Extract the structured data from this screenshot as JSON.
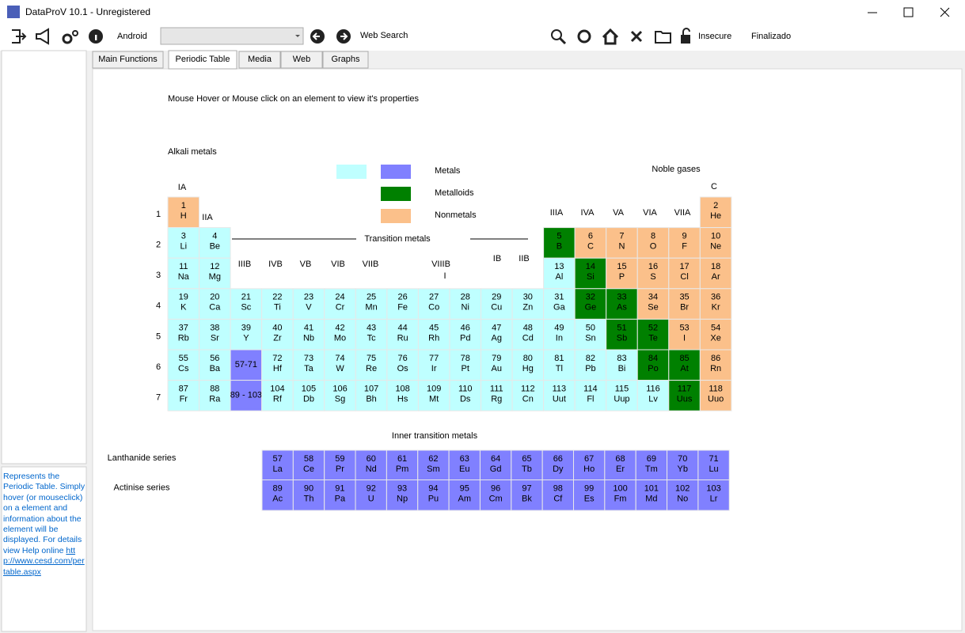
{
  "window": {
    "title": "DataProV 10.1 - Unregistered"
  },
  "toolbar": {
    "device": "Android",
    "web_search": "Web Search",
    "security": "Insecure",
    "status": "Finalizado"
  },
  "tabs": [
    {
      "label": "Main Functions"
    },
    {
      "label": "Periodic Table",
      "active": true
    },
    {
      "label": "Media"
    },
    {
      "label": "Web"
    },
    {
      "label": "Graphs"
    }
  ],
  "sidebar": {
    "description": "Represents the Periodic Table. Simply hover (or mouseclick) on a element and information about the element will be displayed. For details view Help online",
    "link": "http://www.cesd.com/pertable.aspx"
  },
  "periodic": {
    "instruction": "Mouse Hover or Mouse click on an element to view it's properties",
    "alkali": {
      "label": "Alkali metals",
      "color": "#bfffff"
    },
    "legend": [
      {
        "label": "Metals",
        "color": "#8080ff"
      },
      {
        "label": "Metalloids",
        "color": "#008000"
      },
      {
        "label": "Nonmetals",
        "color": "#fbc08a"
      }
    ],
    "noble_gases": "Noble gases",
    "transition_metals": "Transition metals",
    "group_labels": [
      "IA",
      "IIA",
      "IIIB",
      "IVB",
      "VB",
      "VIB",
      "VIIB",
      "VIIIB",
      "I",
      "IB",
      "IIB",
      "IIIA",
      "IVA",
      "VA",
      "VIA",
      "VIIA",
      "C"
    ],
    "periods": [
      {
        "label": "1",
        "cells": [
          {
            "n": "1",
            "s": "H",
            "color": "#fbc08a"
          },
          null,
          null,
          null,
          null,
          null,
          null,
          null,
          null,
          null,
          null,
          null,
          null,
          null,
          null,
          null,
          null,
          {
            "n": "2",
            "s": "He",
            "color": "#fbc08a"
          }
        ]
      },
      {
        "label": "2",
        "cells": [
          {
            "n": "3",
            "s": "Li",
            "color": "#bfffff"
          },
          {
            "n": "4",
            "s": "Be",
            "color": "#bfffff"
          },
          null,
          null,
          null,
          null,
          null,
          null,
          null,
          null,
          null,
          null,
          {
            "n": "5",
            "s": "B",
            "color": "#008000"
          },
          {
            "n": "6",
            "s": "C",
            "color": "#fbc08a"
          },
          {
            "n": "7",
            "s": "N",
            "color": "#fbc08a"
          },
          {
            "n": "8",
            "s": "O",
            "color": "#fbc08a"
          },
          {
            "n": "9",
            "s": "F",
            "color": "#fbc08a"
          },
          {
            "n": "10",
            "s": "Ne",
            "color": "#fbc08a"
          }
        ]
      },
      {
        "label": "3",
        "cells": [
          {
            "n": "11",
            "s": "Na",
            "color": "#bfffff"
          },
          {
            "n": "12",
            "s": "Mg",
            "color": "#bfffff"
          },
          null,
          null,
          null,
          null,
          null,
          null,
          null,
          null,
          null,
          null,
          {
            "n": "13",
            "s": "Al",
            "color": "#bfffff"
          },
          {
            "n": "14",
            "s": "Si",
            "color": "#008000"
          },
          {
            "n": "15",
            "s": "P",
            "color": "#fbc08a"
          },
          {
            "n": "16",
            "s": "S",
            "color": "#fbc08a"
          },
          {
            "n": "17",
            "s": "Cl",
            "color": "#fbc08a"
          },
          {
            "n": "18",
            "s": "Ar",
            "color": "#fbc08a"
          }
        ]
      },
      {
        "label": "4",
        "cells": [
          {
            "n": "19",
            "s": "K",
            "color": "#bfffff"
          },
          {
            "n": "20",
            "s": "Ca",
            "color": "#bfffff"
          },
          {
            "n": "21",
            "s": "Sc",
            "color": "#bfffff"
          },
          {
            "n": "22",
            "s": "Ti",
            "color": "#bfffff"
          },
          {
            "n": "23",
            "s": "V",
            "color": "#bfffff"
          },
          {
            "n": "24",
            "s": "Cr",
            "color": "#bfffff"
          },
          {
            "n": "25",
            "s": "Mn",
            "color": "#bfffff"
          },
          {
            "n": "26",
            "s": "Fe",
            "color": "#bfffff"
          },
          {
            "n": "27",
            "s": "Co",
            "color": "#bfffff"
          },
          {
            "n": "28",
            "s": "Ni",
            "color": "#bfffff"
          },
          {
            "n": "29",
            "s": "Cu",
            "color": "#bfffff"
          },
          {
            "n": "30",
            "s": "Zn",
            "color": "#bfffff"
          },
          {
            "n": "31",
            "s": "Ga",
            "color": "#bfffff"
          },
          {
            "n": "32",
            "s": "Ge",
            "color": "#008000"
          },
          {
            "n": "33",
            "s": "As",
            "color": "#008000"
          },
          {
            "n": "34",
            "s": "Se",
            "color": "#fbc08a"
          },
          {
            "n": "35",
            "s": "Br",
            "color": "#fbc08a"
          },
          {
            "n": "36",
            "s": "Kr",
            "color": "#fbc08a"
          }
        ]
      },
      {
        "label": "5",
        "cells": [
          {
            "n": "37",
            "s": "Rb",
            "color": "#bfffff"
          },
          {
            "n": "38",
            "s": "Sr",
            "color": "#bfffff"
          },
          {
            "n": "39",
            "s": "Y",
            "color": "#bfffff"
          },
          {
            "n": "40",
            "s": "Zr",
            "color": "#bfffff"
          },
          {
            "n": "41",
            "s": "Nb",
            "color": "#bfffff"
          },
          {
            "n": "42",
            "s": "Mo",
            "color": "#bfffff"
          },
          {
            "n": "43",
            "s": "Tc",
            "color": "#bfffff"
          },
          {
            "n": "44",
            "s": "Ru",
            "color": "#bfffff"
          },
          {
            "n": "45",
            "s": "Rh",
            "color": "#bfffff"
          },
          {
            "n": "46",
            "s": "Pd",
            "color": "#bfffff"
          },
          {
            "n": "47",
            "s": "Ag",
            "color": "#bfffff"
          },
          {
            "n": "48",
            "s": "Cd",
            "color": "#bfffff"
          },
          {
            "n": "49",
            "s": "In",
            "color": "#bfffff"
          },
          {
            "n": "50",
            "s": "Sn",
            "color": "#bfffff"
          },
          {
            "n": "51",
            "s": "Sb",
            "color": "#008000"
          },
          {
            "n": "52",
            "s": "Te",
            "color": "#008000"
          },
          {
            "n": "53",
            "s": "I",
            "color": "#fbc08a"
          },
          {
            "n": "54",
            "s": "Xe",
            "color": "#fbc08a"
          }
        ]
      },
      {
        "label": "6",
        "cells": [
          {
            "n": "55",
            "s": "Cs",
            "color": "#bfffff"
          },
          {
            "n": "56",
            "s": "Ba",
            "color": "#bfffff"
          },
          {
            "n": "57-71",
            "color": "#8080ff"
          },
          {
            "n": "72",
            "s": "Hf",
            "color": "#bfffff"
          },
          {
            "n": "73",
            "s": "Ta",
            "color": "#bfffff"
          },
          {
            "n": "74",
            "s": "W",
            "color": "#bfffff"
          },
          {
            "n": "75",
            "s": "Re",
            "color": "#bfffff"
          },
          {
            "n": "76",
            "s": "Os",
            "color": "#bfffff"
          },
          {
            "n": "77",
            "s": "Ir",
            "color": "#bfffff"
          },
          {
            "n": "78",
            "s": "Pt",
            "color": "#bfffff"
          },
          {
            "n": "79",
            "s": "Au",
            "color": "#bfffff"
          },
          {
            "n": "80",
            "s": "Hg",
            "color": "#bfffff"
          },
          {
            "n": "81",
            "s": "Tl",
            "color": "#bfffff"
          },
          {
            "n": "82",
            "s": "Pb",
            "color": "#bfffff"
          },
          {
            "n": "83",
            "s": "Bi",
            "color": "#bfffff"
          },
          {
            "n": "84",
            "s": "Po",
            "color": "#008000"
          },
          {
            "n": "85",
            "s": "At",
            "color": "#008000"
          },
          {
            "n": "86",
            "s": "Rn",
            "color": "#fbc08a"
          }
        ]
      },
      {
        "label": "7",
        "cells": [
          {
            "n": "87",
            "s": "Fr",
            "color": "#bfffff"
          },
          {
            "n": "88",
            "s": "Ra",
            "color": "#bfffff"
          },
          {
            "n": "89 - 103",
            "color": "#8080ff"
          },
          {
            "n": "104",
            "s": "Rf",
            "color": "#bfffff"
          },
          {
            "n": "105",
            "s": "Db",
            "color": "#bfffff"
          },
          {
            "n": "106",
            "s": "Sg",
            "color": "#bfffff"
          },
          {
            "n": "107",
            "s": "Bh",
            "color": "#bfffff"
          },
          {
            "n": "108",
            "s": "Hs",
            "color": "#bfffff"
          },
          {
            "n": "109",
            "s": "Mt",
            "color": "#bfffff"
          },
          {
            "n": "110",
            "s": "Ds",
            "color": "#bfffff"
          },
          {
            "n": "111",
            "s": "Rg",
            "color": "#bfffff"
          },
          {
            "n": "112",
            "s": "Cn",
            "color": "#bfffff"
          },
          {
            "n": "113",
            "s": "Uut",
            "color": "#bfffff"
          },
          {
            "n": "114",
            "s": "Fl",
            "color": "#bfffff"
          },
          {
            "n": "115",
            "s": "Uup",
            "color": "#bfffff"
          },
          {
            "n": "116",
            "s": "Lv",
            "color": "#bfffff"
          },
          {
            "n": "117",
            "s": "Uus",
            "color": "#008000"
          },
          {
            "n": "118",
            "s": "Uuo",
            "color": "#fbc08a"
          }
        ]
      }
    ],
    "inner_transition": "Inner transition metals",
    "series": [
      {
        "label": "Lanthanide series",
        "color": "#8080ff",
        "cells": [
          {
            "n": "57",
            "s": "La"
          },
          {
            "n": "58",
            "s": "Ce"
          },
          {
            "n": "59",
            "s": "Pr"
          },
          {
            "n": "60",
            "s": "Nd"
          },
          {
            "n": "61",
            "s": "Pm"
          },
          {
            "n": "62",
            "s": "Sm"
          },
          {
            "n": "63",
            "s": "Eu"
          },
          {
            "n": "64",
            "s": "Gd"
          },
          {
            "n": "65",
            "s": "Tb"
          },
          {
            "n": "66",
            "s": "Dy"
          },
          {
            "n": "67",
            "s": "Ho"
          },
          {
            "n": "68",
            "s": "Er"
          },
          {
            "n": "69",
            "s": "Tm"
          },
          {
            "n": "70",
            "s": "Yb"
          },
          {
            "n": "71",
            "s": "Lu"
          }
        ]
      },
      {
        "label": "Actinise series",
        "color": "#8080ff",
        "cells": [
          {
            "n": "89",
            "s": "Ac"
          },
          {
            "n": "90",
            "s": "Th"
          },
          {
            "n": "91",
            "s": "Pa"
          },
          {
            "n": "92",
            "s": "U"
          },
          {
            "n": "93",
            "s": "Np"
          },
          {
            "n": "94",
            "s": "Pu"
          },
          {
            "n": "95",
            "s": "Am"
          },
          {
            "n": "96",
            "s": "Cm"
          },
          {
            "n": "97",
            "s": "Bk"
          },
          {
            "n": "98",
            "s": "Cf"
          },
          {
            "n": "99",
            "s": "Es"
          },
          {
            "n": "100",
            "s": "Fm"
          },
          {
            "n": "101",
            "s": "Md"
          },
          {
            "n": "102",
            "s": "No"
          },
          {
            "n": "103",
            "s": "Lr"
          }
        ]
      }
    ]
  }
}
